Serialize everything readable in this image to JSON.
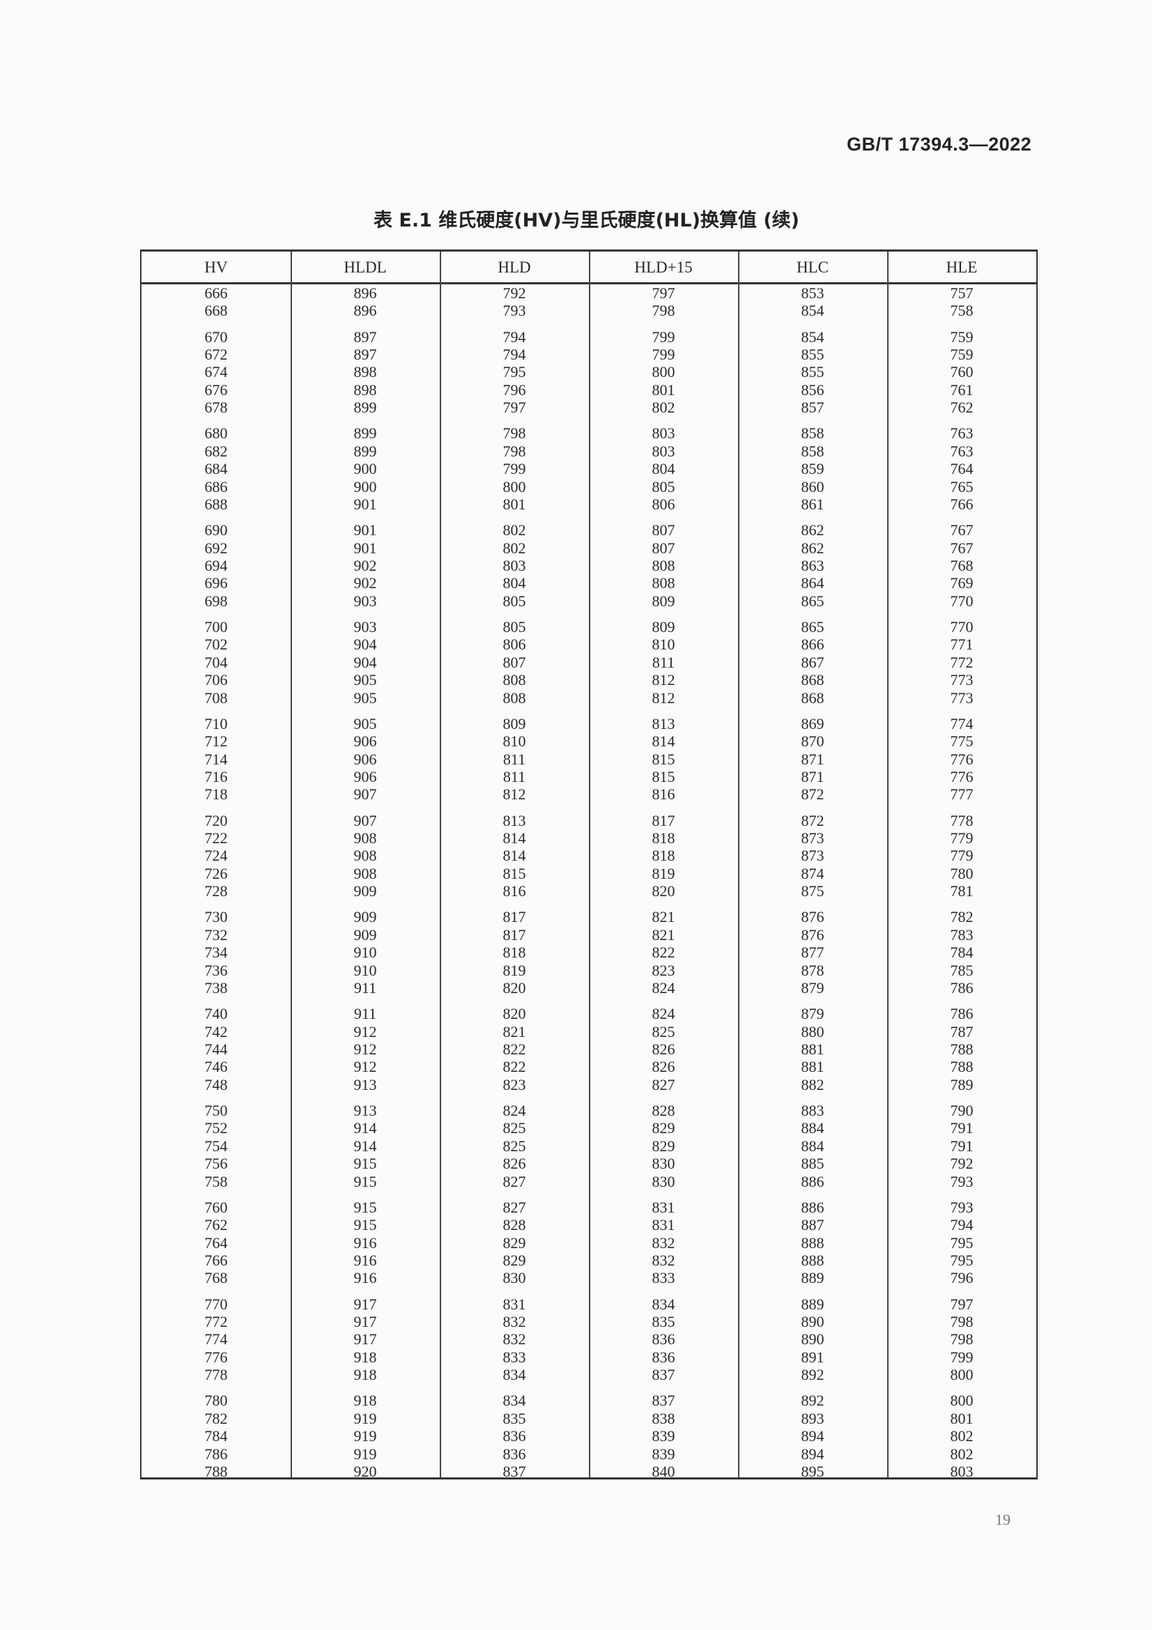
{
  "header": {
    "standard_number": "GB/T 17394.3—2022"
  },
  "table": {
    "title": "表 E.1   维氏硬度(HV)与里氏硬度(HL)换算值 (续)",
    "columns": [
      "HV",
      "HLDL",
      "HLD",
      "HLD+15",
      "HLC",
      "HLE"
    ],
    "row_groups": [
      [
        [
          "666",
          "896",
          "792",
          "797",
          "853",
          "757"
        ],
        [
          "668",
          "896",
          "793",
          "798",
          "854",
          "758"
        ]
      ],
      [
        [
          "670",
          "897",
          "794",
          "799",
          "854",
          "759"
        ],
        [
          "672",
          "897",
          "794",
          "799",
          "855",
          "759"
        ],
        [
          "674",
          "898",
          "795",
          "800",
          "855",
          "760"
        ],
        [
          "676",
          "898",
          "796",
          "801",
          "856",
          "761"
        ],
        [
          "678",
          "899",
          "797",
          "802",
          "857",
          "762"
        ]
      ],
      [
        [
          "680",
          "899",
          "798",
          "803",
          "858",
          "763"
        ],
        [
          "682",
          "899",
          "798",
          "803",
          "858",
          "763"
        ],
        [
          "684",
          "900",
          "799",
          "804",
          "859",
          "764"
        ],
        [
          "686",
          "900",
          "800",
          "805",
          "860",
          "765"
        ],
        [
          "688",
          "901",
          "801",
          "806",
          "861",
          "766"
        ]
      ],
      [
        [
          "690",
          "901",
          "802",
          "807",
          "862",
          "767"
        ],
        [
          "692",
          "901",
          "802",
          "807",
          "862",
          "767"
        ],
        [
          "694",
          "902",
          "803",
          "808",
          "863",
          "768"
        ],
        [
          "696",
          "902",
          "804",
          "808",
          "864",
          "769"
        ],
        [
          "698",
          "903",
          "805",
          "809",
          "865",
          "770"
        ]
      ],
      [
        [
          "700",
          "903",
          "805",
          "809",
          "865",
          "770"
        ],
        [
          "702",
          "904",
          "806",
          "810",
          "866",
          "771"
        ],
        [
          "704",
          "904",
          "807",
          "811",
          "867",
          "772"
        ],
        [
          "706",
          "905",
          "808",
          "812",
          "868",
          "773"
        ],
        [
          "708",
          "905",
          "808",
          "812",
          "868",
          "773"
        ]
      ],
      [
        [
          "710",
          "905",
          "809",
          "813",
          "869",
          "774"
        ],
        [
          "712",
          "906",
          "810",
          "814",
          "870",
          "775"
        ],
        [
          "714",
          "906",
          "811",
          "815",
          "871",
          "776"
        ],
        [
          "716",
          "906",
          "811",
          "815",
          "871",
          "776"
        ],
        [
          "718",
          "907",
          "812",
          "816",
          "872",
          "777"
        ]
      ],
      [
        [
          "720",
          "907",
          "813",
          "817",
          "872",
          "778"
        ],
        [
          "722",
          "908",
          "814",
          "818",
          "873",
          "779"
        ],
        [
          "724",
          "908",
          "814",
          "818",
          "873",
          "779"
        ],
        [
          "726",
          "908",
          "815",
          "819",
          "874",
          "780"
        ],
        [
          "728",
          "909",
          "816",
          "820",
          "875",
          "781"
        ]
      ],
      [
        [
          "730",
          "909",
          "817",
          "821",
          "876",
          "782"
        ],
        [
          "732",
          "909",
          "817",
          "821",
          "876",
          "783"
        ],
        [
          "734",
          "910",
          "818",
          "822",
          "877",
          "784"
        ],
        [
          "736",
          "910",
          "819",
          "823",
          "878",
          "785"
        ],
        [
          "738",
          "911",
          "820",
          "824",
          "879",
          "786"
        ]
      ],
      [
        [
          "740",
          "911",
          "820",
          "824",
          "879",
          "786"
        ],
        [
          "742",
          "912",
          "821",
          "825",
          "880",
          "787"
        ],
        [
          "744",
          "912",
          "822",
          "826",
          "881",
          "788"
        ],
        [
          "746",
          "912",
          "822",
          "826",
          "881",
          "788"
        ],
        [
          "748",
          "913",
          "823",
          "827",
          "882",
          "789"
        ]
      ],
      [
        [
          "750",
          "913",
          "824",
          "828",
          "883",
          "790"
        ],
        [
          "752",
          "914",
          "825",
          "829",
          "884",
          "791"
        ],
        [
          "754",
          "914",
          "825",
          "829",
          "884",
          "791"
        ],
        [
          "756",
          "915",
          "826",
          "830",
          "885",
          "792"
        ],
        [
          "758",
          "915",
          "827",
          "830",
          "886",
          "793"
        ]
      ],
      [
        [
          "760",
          "915",
          "827",
          "831",
          "886",
          "793"
        ],
        [
          "762",
          "915",
          "828",
          "831",
          "887",
          "794"
        ],
        [
          "764",
          "916",
          "829",
          "832",
          "888",
          "795"
        ],
        [
          "766",
          "916",
          "829",
          "832",
          "888",
          "795"
        ],
        [
          "768",
          "916",
          "830",
          "833",
          "889",
          "796"
        ]
      ],
      [
        [
          "770",
          "917",
          "831",
          "834",
          "889",
          "797"
        ],
        [
          "772",
          "917",
          "832",
          "835",
          "890",
          "798"
        ],
        [
          "774",
          "917",
          "832",
          "836",
          "890",
          "798"
        ],
        [
          "776",
          "918",
          "833",
          "836",
          "891",
          "799"
        ],
        [
          "778",
          "918",
          "834",
          "837",
          "892",
          "800"
        ]
      ],
      [
        [
          "780",
          "918",
          "834",
          "837",
          "892",
          "800"
        ],
        [
          "782",
          "919",
          "835",
          "838",
          "893",
          "801"
        ],
        [
          "784",
          "919",
          "836",
          "839",
          "894",
          "802"
        ],
        [
          "786",
          "919",
          "836",
          "839",
          "894",
          "802"
        ],
        [
          "788",
          "920",
          "837",
          "840",
          "895",
          "803"
        ]
      ]
    ]
  },
  "footer": {
    "page_number": "19"
  }
}
